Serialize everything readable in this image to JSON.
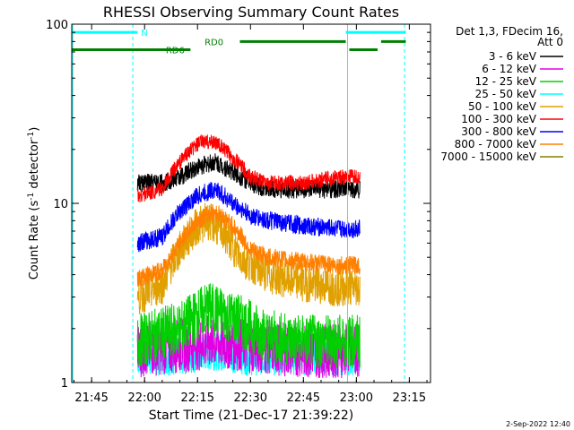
{
  "chart_data": {
    "type": "line",
    "title": "RHESSI Observing Summary Count Rates",
    "xlabel": "Start Time (21-Dec-17 21:39:22)",
    "ylabel_main": "Count Rate (s",
    "ylabel_sup1": "-1",
    "ylabel_mid": " detector",
    "ylabel_sup2": "-1",
    "ylabel_end": ")",
    "yscale": "log",
    "xlim": [
      "21:39:22",
      "23:21:00"
    ],
    "ylim": [
      1,
      100
    ],
    "x_ticks": [
      "21:45",
      "22:00",
      "22:15",
      "22:30",
      "22:45",
      "23:00",
      "23:15"
    ],
    "y_ticks": [
      {
        "value": 1,
        "label": "1"
      },
      {
        "value": 10,
        "label": "10"
      },
      {
        "value": 100,
        "label": "100"
      }
    ],
    "legend": {
      "placement": "right",
      "header_line1": "Det 1,3, FDecim 16,",
      "header_line2": "Att 0"
    },
    "series": [
      {
        "name": "3 - 6 keV",
        "color": "#000000",
        "x": [
          "21:58",
          "22:05",
          "22:10",
          "22:15",
          "22:20",
          "22:25",
          "22:30",
          "22:35",
          "22:45",
          "22:55",
          "23:01"
        ],
        "y": [
          13,
          13,
          14,
          16,
          17,
          15,
          13,
          12,
          12,
          12,
          12
        ]
      },
      {
        "name": "6 - 12 keV",
        "color": "#e000e0",
        "x": [
          "21:58",
          "22:10",
          "22:20",
          "22:30",
          "22:45",
          "23:01"
        ],
        "y": [
          1.5,
          1.6,
          1.7,
          1.6,
          1.5,
          1.5
        ]
      },
      {
        "name": "12 - 25 keV",
        "color": "#00d000",
        "x": [
          "21:58",
          "22:10",
          "22:18",
          "22:25",
          "22:35",
          "22:45",
          "22:55",
          "23:01"
        ],
        "y": [
          1.7,
          2.0,
          2.6,
          2.3,
          1.8,
          1.7,
          1.7,
          1.7
        ]
      },
      {
        "name": "25 - 50 keV",
        "color": "#00ffff",
        "x": [
          "21:58",
          "22:10",
          "22:20",
          "22:30",
          "22:45",
          "23:01"
        ],
        "y": [
          1.4,
          1.4,
          1.5,
          1.4,
          1.4,
          1.4
        ]
      },
      {
        "name": "50 - 100 keV",
        "color": "#e0a000",
        "x": [
          "21:58",
          "22:05",
          "22:10",
          "22:15",
          "22:18",
          "22:22",
          "22:27",
          "22:35",
          "22:45",
          "22:55",
          "23:01"
        ],
        "y": [
          3.0,
          3.5,
          5.5,
          7.5,
          8.0,
          7.0,
          5.0,
          4.0,
          3.6,
          3.4,
          3.4
        ]
      },
      {
        "name": "100 - 300 keV",
        "color": "#ff0000",
        "x": [
          "21:58",
          "22:05",
          "22:08",
          "22:12",
          "22:16",
          "22:20",
          "22:25",
          "22:30",
          "22:35",
          "22:45",
          "22:55",
          "23:01"
        ],
        "y": [
          11,
          12,
          15,
          19,
          22,
          22,
          18,
          14,
          13,
          13,
          14,
          14
        ]
      },
      {
        "name": "300 - 800 keV",
        "color": "#0000ff",
        "x": [
          "21:58",
          "22:05",
          "22:10",
          "22:15",
          "22:20",
          "22:25",
          "22:30",
          "22:35",
          "22:45",
          "22:55",
          "23:01"
        ],
        "y": [
          6,
          6.5,
          9,
          11,
          12,
          10,
          8.5,
          8,
          7.5,
          7.2,
          7.2
        ]
      },
      {
        "name": "800 - 7000 keV",
        "color": "#ff8000",
        "x": [
          "21:58",
          "22:05",
          "22:10",
          "22:15",
          "22:20",
          "22:25",
          "22:30",
          "22:35",
          "22:45",
          "22:55",
          "23:01"
        ],
        "y": [
          3.8,
          4.2,
          6,
          8,
          9,
          7.5,
          5.5,
          5,
          4.7,
          4.5,
          4.5
        ]
      },
      {
        "name": "7000 - 15000 keV",
        "color": "#808000",
        "x": [],
        "y": []
      }
    ],
    "attenuator_bars": [
      {
        "label": "N",
        "color": "#00ffff",
        "segments": [
          [
            "21:39:22",
            "21:58"
          ],
          [
            "22:57",
            "23:14"
          ]
        ],
        "y": 90
      },
      {
        "label": "RD0",
        "color": "#008000",
        "segments": [
          [
            "22:27",
            "22:57"
          ],
          [
            "23:07",
            "23:14"
          ]
        ],
        "y": 80
      },
      {
        "label": "RD6",
        "color": "#008000",
        "segments": [
          [
            "21:39:22",
            "22:13"
          ],
          [
            "22:58",
            "23:06"
          ]
        ],
        "y": 72
      }
    ],
    "vertical_markers": [
      {
        "x": "21:39:40",
        "style": "solid",
        "color": "#00ffff"
      },
      {
        "x": "21:56:40",
        "style": "dashed",
        "color": "#00ffff"
      },
      {
        "x": "22:57:30",
        "style": "solid",
        "color": "#00ffff"
      },
      {
        "x": "23:13:40",
        "style": "dashed",
        "color": "#00ffff"
      }
    ]
  },
  "footer": {
    "date": "2-Sep-2022 12:40"
  }
}
